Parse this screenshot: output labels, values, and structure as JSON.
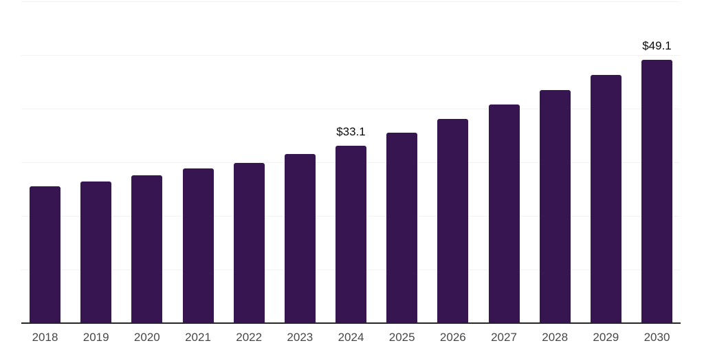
{
  "chart_data": {
    "type": "bar",
    "title": "",
    "xlabel": "",
    "ylabel": "",
    "categories": [
      "2018",
      "2019",
      "2020",
      "2021",
      "2022",
      "2023",
      "2024",
      "2025",
      "2026",
      "2027",
      "2028",
      "2029",
      "2030"
    ],
    "values": [
      25.5,
      26.4,
      27.6,
      28.8,
      29.9,
      31.5,
      33.1,
      35.5,
      38.1,
      40.8,
      43.5,
      46.3,
      49.1
    ],
    "annotations": [
      {
        "category": "2024",
        "text": "$33.1"
      },
      {
        "category": "2030",
        "text": "$49.1"
      }
    ],
    "ylim": [
      0,
      60
    ],
    "grid": {
      "visible": true,
      "interval": 10,
      "color": "#f3f3f3"
    },
    "legend_position": "none",
    "colors": {
      "bar": "#371550",
      "axis_line": "#262626",
      "tick_label": "#474747",
      "value_label": "#0b0b0b",
      "background": "#ffffff"
    }
  }
}
